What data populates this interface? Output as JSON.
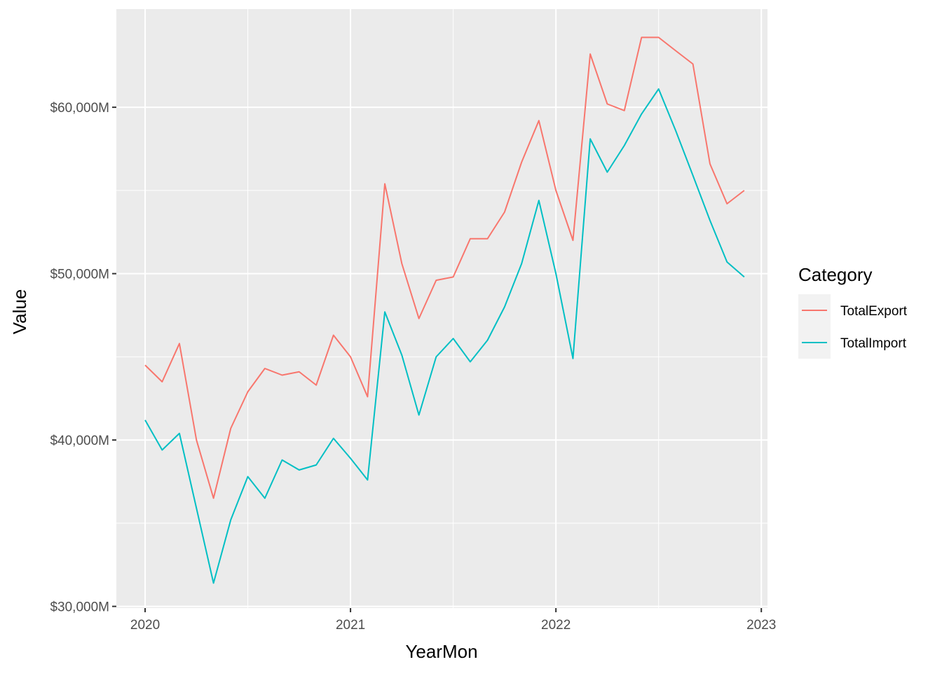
{
  "chart_data": {
    "type": "line",
    "xlabel": "YearMon",
    "ylabel": "Value",
    "x_ticks": [
      2020,
      2021,
      2022,
      2023
    ],
    "x_tick_labels": [
      "2020",
      "2021",
      "2022",
      "2023"
    ],
    "xlim": [
      2019.86,
      2023.03
    ],
    "y_ticks": [
      30000,
      40000,
      50000,
      60000
    ],
    "y_tick_labels": [
      "$30,000M",
      "$40,000M",
      "$50,000M",
      "$60,000M"
    ],
    "ylim": [
      29900,
      65900
    ],
    "grid": true,
    "legend": {
      "title": "Category",
      "position": "right"
    },
    "x": [
      2020.0,
      2020.083,
      2020.167,
      2020.25,
      2020.333,
      2020.417,
      2020.5,
      2020.583,
      2020.667,
      2020.75,
      2020.833,
      2020.917,
      2021.0,
      2021.083,
      2021.167,
      2021.25,
      2021.333,
      2021.417,
      2021.5,
      2021.583,
      2021.667,
      2021.75,
      2021.833,
      2021.917,
      2022.0,
      2022.083,
      2022.167,
      2022.25,
      2022.333,
      2022.417,
      2022.5,
      2022.583,
      2022.667,
      2022.75,
      2022.833,
      2022.917
    ],
    "series": [
      {
        "name": "TotalExport",
        "color": "#F8766D",
        "values": [
          44500,
          43500,
          45800,
          40000,
          36500,
          40700,
          42900,
          44300,
          43900,
          44100,
          43300,
          46300,
          45000,
          42600,
          55400,
          50600,
          47300,
          49600,
          49800,
          52100,
          52100,
          53700,
          56700,
          59200,
          55000,
          52000,
          63200,
          60200,
          59800,
          64200,
          64200,
          63400,
          62600,
          56600,
          54200,
          55000
        ]
      },
      {
        "name": "TotalImport",
        "color": "#00BFC4",
        "values": [
          41200,
          39400,
          40400,
          35900,
          31400,
          35200,
          37800,
          36500,
          38800,
          38200,
          38500,
          40100,
          38900,
          37600,
          47700,
          45100,
          41500,
          45000,
          46100,
          44700,
          46000,
          48000,
          50600,
          54400,
          50000,
          44900,
          58100,
          56100,
          57700,
          59600,
          61100,
          58600,
          55900,
          53200,
          50700,
          49800
        ]
      }
    ]
  }
}
